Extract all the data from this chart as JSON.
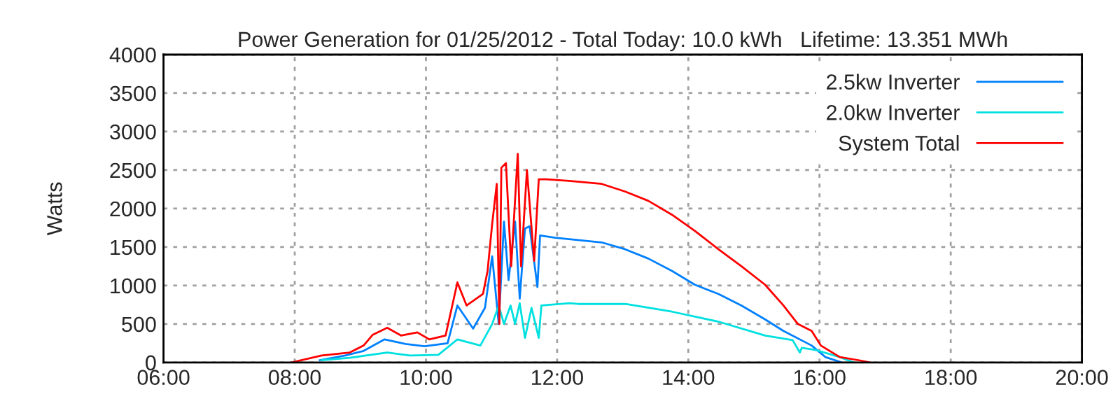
{
  "chart_data": {
    "type": "line",
    "title": "Power Generation for 01/25/2012 - Total Today: 10.0 kWh   Lifetime: 13.351 MWh",
    "ylabel": "Watts",
    "xlim": [
      6,
      20
    ],
    "ylim": [
      0,
      4000
    ],
    "xticks": [
      {
        "value": 6,
        "label": "06:00"
      },
      {
        "value": 8,
        "label": "08:00"
      },
      {
        "value": 10,
        "label": "10:00"
      },
      {
        "value": 12,
        "label": "12:00"
      },
      {
        "value": 14,
        "label": "14:00"
      },
      {
        "value": 16,
        "label": "16:00"
      },
      {
        "value": 18,
        "label": "18:00"
      },
      {
        "value": 20,
        "label": "20:00"
      }
    ],
    "yticks": [
      0,
      500,
      1000,
      1500,
      2000,
      2500,
      3000,
      3500,
      4000
    ],
    "grid": true,
    "legend": "top right",
    "line_style": "solid",
    "marker": "none",
    "series": [
      {
        "name": "2.5kw Inverter",
        "color": "#0080ff",
        "x": [
          8.38,
          8.77,
          9.05,
          9.37,
          9.69,
          9.98,
          10.33,
          10.48,
          10.72,
          10.9,
          11.01,
          11.11,
          11.19,
          11.26,
          11.36,
          11.43,
          11.51,
          11.58,
          11.7,
          11.74,
          11.97,
          12.68,
          13.04,
          13.39,
          13.75,
          14.1,
          14.46,
          14.81,
          15.17,
          15.45,
          15.88,
          16.09,
          16.34
        ],
        "values": [
          30,
          90,
          150,
          300,
          240,
          210,
          250,
          740,
          440,
          710,
          1380,
          500,
          1830,
          1070,
          1830,
          830,
          1740,
          1770,
          980,
          1650,
          1620,
          1560,
          1470,
          1350,
          1190,
          1010,
          890,
          740,
          560,
          410,
          220,
          70,
          0
        ]
      },
      {
        "name": "2.0kw Inverter",
        "color": "#00e0e0",
        "x": [
          8.41,
          8.84,
          9.41,
          9.76,
          10.19,
          10.48,
          10.83,
          11.01,
          11.11,
          11.19,
          11.29,
          11.36,
          11.43,
          11.51,
          11.61,
          11.72,
          11.76,
          12.19,
          12.32,
          13.04,
          13.75,
          14.46,
          15.17,
          15.59,
          15.7,
          15.73,
          15.95,
          16.31,
          16.52
        ],
        "values": [
          30,
          60,
          130,
          90,
          100,
          300,
          220,
          500,
          740,
          500,
          740,
          500,
          770,
          320,
          710,
          320,
          740,
          770,
          760,
          760,
          660,
          530,
          350,
          290,
          130,
          190,
          160,
          70,
          0
        ]
      },
      {
        "name": "System Total",
        "color": "#ff0000",
        "x": [
          7.95,
          8.41,
          8.84,
          9.05,
          9.19,
          9.41,
          9.62,
          9.87,
          10.05,
          10.3,
          10.48,
          10.62,
          10.87,
          10.94,
          11.01,
          11.08,
          11.12,
          11.15,
          11.22,
          11.3,
          11.4,
          11.45,
          11.54,
          11.65,
          11.72,
          11.83,
          12.18,
          12.68,
          13.04,
          13.39,
          13.75,
          14.1,
          14.46,
          14.81,
          15.17,
          15.45,
          15.67,
          15.88,
          16.02,
          16.31,
          16.59,
          16.77
        ],
        "values": [
          0,
          90,
          130,
          220,
          360,
          450,
          350,
          390,
          300,
          350,
          1040,
          740,
          890,
          1190,
          1800,
          2320,
          500,
          2530,
          2590,
          1250,
          2710,
          1250,
          2500,
          1320,
          2380,
          2380,
          2360,
          2320,
          2220,
          2100,
          1920,
          1710,
          1470,
          1250,
          1010,
          740,
          500,
          410,
          220,
          70,
          30,
          0
        ]
      }
    ]
  }
}
